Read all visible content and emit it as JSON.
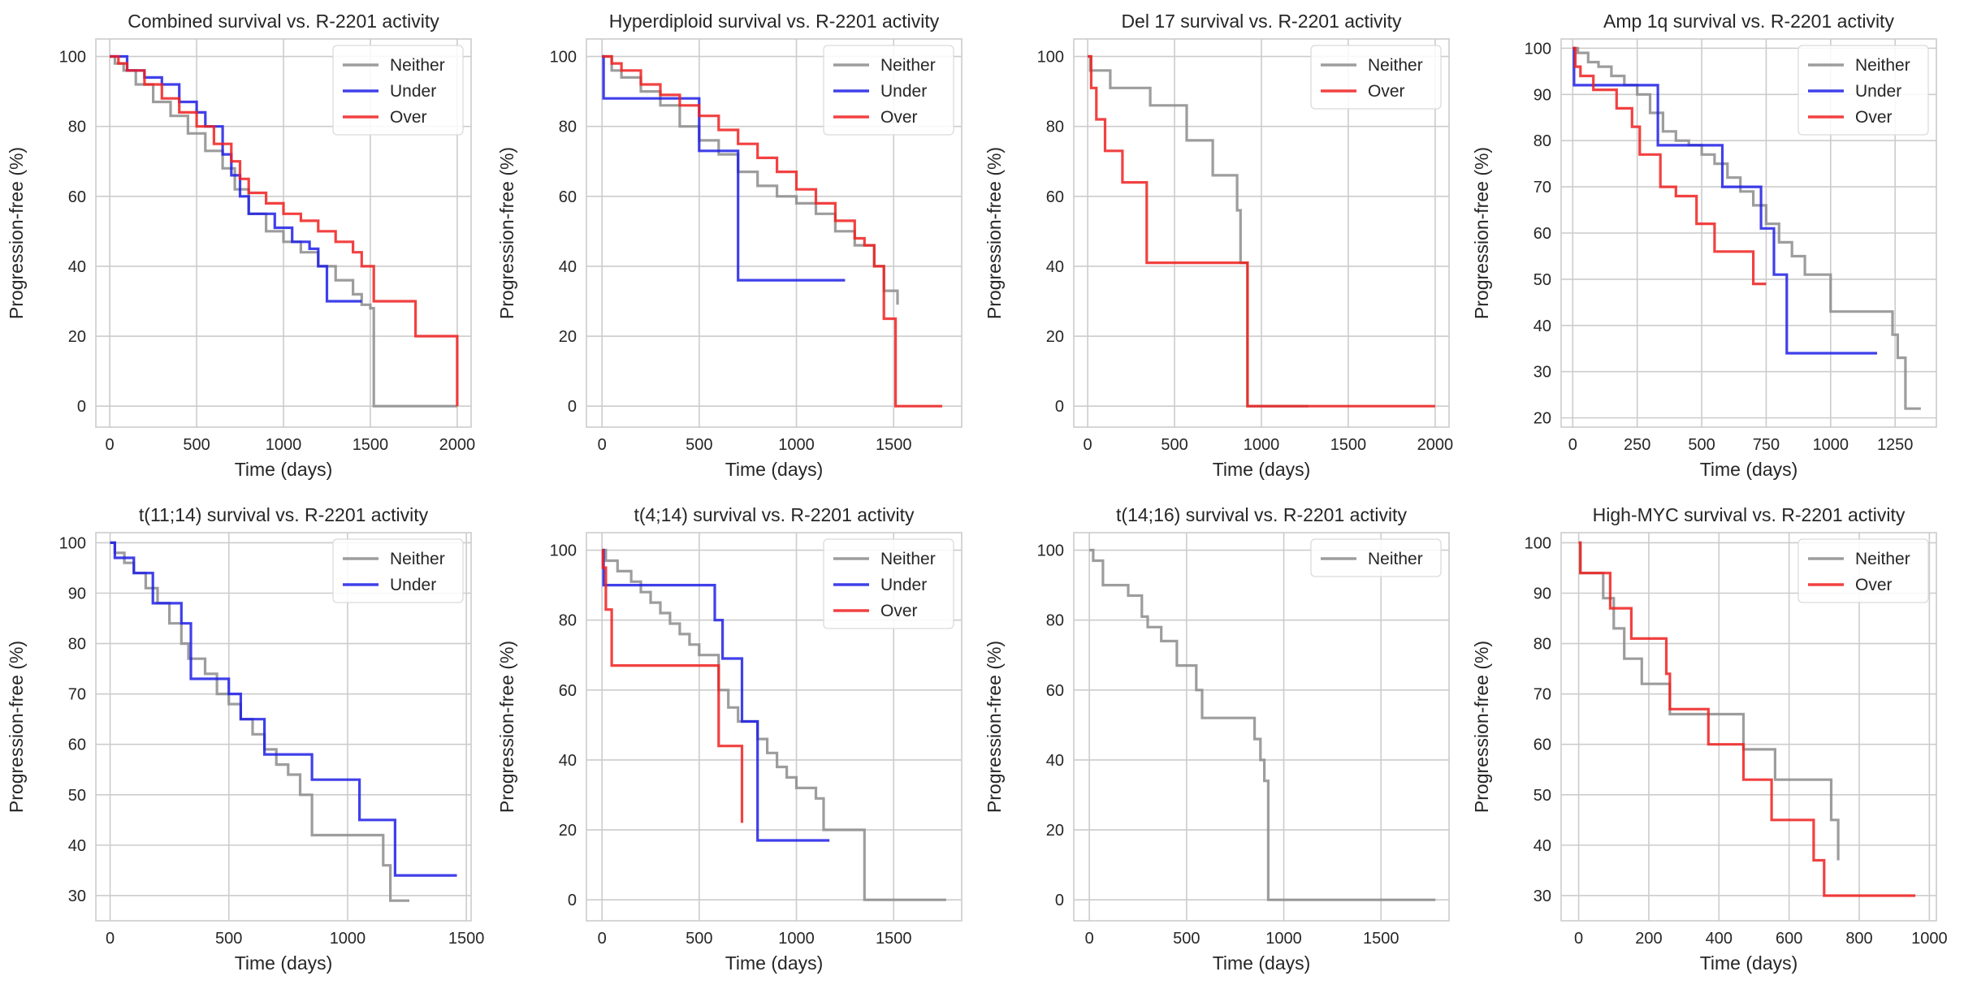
{
  "chart_data": [
    {
      "type": "line",
      "title": "Combined survival vs. R-2201 activity",
      "xlabel": "Time (days)",
      "ylabel": "Progression-free (%)",
      "xlim": [
        -80,
        2080
      ],
      "ylim": [
        -6,
        105
      ],
      "xticks": [
        0,
        500,
        1000,
        1500,
        2000
      ],
      "yticks": [
        0,
        20,
        40,
        60,
        80,
        100
      ],
      "grid": true,
      "legend": "top-right",
      "series": [
        {
          "name": "Neither",
          "color": "#8c8c8c",
          "step": true,
          "x": [
            0,
            30,
            80,
            150,
            250,
            350,
            450,
            550,
            650,
            720,
            800,
            900,
            1000,
            1100,
            1200,
            1300,
            1400,
            1450,
            1500,
            1520,
            2000
          ],
          "y": [
            100,
            98,
            96,
            92,
            87,
            83,
            78,
            73,
            68,
            62,
            55,
            50,
            47,
            44,
            40,
            36,
            32,
            29,
            28,
            0,
            0
          ]
        },
        {
          "name": "Under",
          "color": "#1f1fe6",
          "step": true,
          "x": [
            0,
            100,
            200,
            300,
            400,
            500,
            550,
            650,
            700,
            750,
            800,
            950,
            1050,
            1150,
            1200,
            1250,
            1400,
            1450
          ],
          "y": [
            100,
            96,
            94,
            92,
            87,
            84,
            80,
            72,
            66,
            60,
            55,
            51,
            47,
            45,
            40,
            30,
            30,
            30
          ]
        },
        {
          "name": "Over",
          "color": "#f02020",
          "step": true,
          "x": [
            0,
            50,
            100,
            200,
            300,
            400,
            500,
            600,
            700,
            750,
            800,
            900,
            1000,
            1100,
            1200,
            1300,
            1400,
            1450,
            1520,
            1760,
            2000
          ],
          "y": [
            100,
            98,
            96,
            92,
            88,
            84,
            80,
            75,
            70,
            65,
            61,
            58,
            55,
            53,
            50,
            47,
            44,
            40,
            30,
            20,
            0
          ]
        }
      ]
    },
    {
      "type": "line",
      "title": "Hyperdiploid survival vs. R-2201 activity",
      "xlabel": "Time (days)",
      "ylabel": "Progression-free (%)",
      "xlim": [
        -80,
        1850
      ],
      "ylim": [
        -6,
        105
      ],
      "xticks": [
        0,
        500,
        1000,
        1500
      ],
      "yticks": [
        0,
        20,
        40,
        60,
        80,
        100
      ],
      "grid": true,
      "legend": "top-right",
      "series": [
        {
          "name": "Neither",
          "color": "#8c8c8c",
          "step": true,
          "x": [
            0,
            50,
            100,
            200,
            300,
            400,
            500,
            600,
            700,
            800,
            900,
            1000,
            1100,
            1200,
            1300,
            1400,
            1450,
            1520
          ],
          "y": [
            100,
            96,
            94,
            90,
            86,
            80,
            76,
            72,
            67,
            63,
            60,
            58,
            55,
            50,
            46,
            40,
            33,
            29
          ]
        },
        {
          "name": "Under",
          "color": "#1f1fe6",
          "step": true,
          "x": [
            0,
            8,
            500,
            700,
            1250
          ],
          "y": [
            100,
            88,
            73,
            36,
            36
          ]
        },
        {
          "name": "Over",
          "color": "#f02020",
          "step": true,
          "x": [
            0,
            50,
            100,
            200,
            300,
            400,
            500,
            600,
            700,
            800,
            900,
            1000,
            1100,
            1200,
            1300,
            1350,
            1400,
            1450,
            1510,
            1750
          ],
          "y": [
            100,
            98,
            96,
            92,
            89,
            86,
            83,
            79,
            75,
            71,
            67,
            62,
            58,
            53,
            48,
            46,
            40,
            25,
            0,
            0
          ]
        }
      ]
    },
    {
      "type": "line",
      "title": "Del 17 survival vs. R-2201 activity",
      "xlabel": "Time (days)",
      "ylabel": "Progression-free (%)",
      "xlim": [
        -80,
        2080
      ],
      "ylim": [
        -6,
        105
      ],
      "xticks": [
        0,
        500,
        1000,
        1500,
        2000
      ],
      "yticks": [
        0,
        20,
        40,
        60,
        80,
        100
      ],
      "grid": true,
      "legend": "top-right",
      "series": [
        {
          "name": "Neither",
          "color": "#8c8c8c",
          "step": true,
          "x": [
            0,
            15,
            130,
            360,
            570,
            720,
            860,
            880,
            920,
            1270
          ],
          "y": [
            100,
            96,
            91,
            86,
            76,
            66,
            56,
            41,
            0,
            0
          ]
        },
        {
          "name": "Over",
          "color": "#f02020",
          "step": true,
          "x": [
            0,
            20,
            50,
            100,
            200,
            340,
            900,
            920,
            2000
          ],
          "y": [
            100,
            91,
            82,
            73,
            64,
            41,
            41,
            0,
            0
          ]
        }
      ]
    },
    {
      "type": "line",
      "title": "Amp 1q survival vs. R-2201 activity",
      "xlabel": "Time (days)",
      "ylabel": "Progression-free (%)",
      "xlim": [
        -45,
        1410
      ],
      "ylim": [
        18,
        102
      ],
      "xticks": [
        0,
        250,
        500,
        750,
        1000,
        1250
      ],
      "yticks": [
        20,
        30,
        40,
        50,
        60,
        70,
        80,
        90,
        100
      ],
      "grid": true,
      "legend": "top-right",
      "series": [
        {
          "name": "Neither",
          "color": "#8c8c8c",
          "step": true,
          "x": [
            0,
            20,
            60,
            100,
            150,
            200,
            250,
            300,
            350,
            400,
            450,
            500,
            550,
            600,
            650,
            700,
            750,
            800,
            850,
            900,
            1000,
            1240,
            1260,
            1290,
            1350
          ],
          "y": [
            100,
            99,
            97,
            96,
            94,
            92,
            90,
            86,
            82,
            80,
            79,
            77,
            75,
            72,
            69,
            66,
            62,
            58,
            55,
            51,
            43,
            38,
            33,
            22,
            22
          ]
        },
        {
          "name": "Under",
          "color": "#1f1fe6",
          "step": true,
          "x": [
            0,
            5,
            330,
            580,
            730,
            780,
            830,
            1180
          ],
          "y": [
            100,
            92,
            79,
            70,
            61,
            51,
            34,
            34
          ]
        },
        {
          "name": "Over",
          "color": "#f02020",
          "step": true,
          "x": [
            0,
            10,
            30,
            80,
            170,
            230,
            260,
            340,
            400,
            480,
            550,
            600,
            700,
            750
          ],
          "y": [
            100,
            96,
            94,
            91,
            87,
            83,
            77,
            70,
            68,
            62,
            56,
            56,
            49,
            49
          ]
        }
      ]
    },
    {
      "type": "line",
      "title": "t(11;14) survival vs. R-2201 activity",
      "xlabel": "Time (days)",
      "ylabel": "Progression-free (%)",
      "xlim": [
        -60,
        1520
      ],
      "ylim": [
        25,
        102
      ],
      "xticks": [
        0,
        500,
        1000,
        1500
      ],
      "yticks": [
        30,
        40,
        50,
        60,
        70,
        80,
        90,
        100
      ],
      "grid": true,
      "legend": "top-right",
      "series": [
        {
          "name": "Neither",
          "color": "#8c8c8c",
          "step": true,
          "x": [
            0,
            20,
            60,
            100,
            150,
            200,
            250,
            300,
            330,
            400,
            450,
            500,
            550,
            600,
            650,
            700,
            750,
            800,
            850,
            1000,
            1150,
            1180,
            1260
          ],
          "y": [
            100,
            98,
            96,
            94,
            91,
            88,
            84,
            80,
            77,
            74,
            70,
            68,
            65,
            62,
            59,
            56,
            54,
            50,
            42,
            42,
            36,
            29,
            29
          ]
        },
        {
          "name": "Under",
          "color": "#1f1fe6",
          "step": true,
          "x": [
            0,
            20,
            100,
            180,
            300,
            340,
            500,
            550,
            650,
            850,
            1050,
            1200,
            1460
          ],
          "y": [
            100,
            97,
            94,
            88,
            84,
            73,
            70,
            65,
            58,
            53,
            45,
            34,
            34
          ]
        }
      ]
    },
    {
      "type": "line",
      "title": "t(4;14) survival vs. R-2201 activity",
      "xlabel": "Time (days)",
      "ylabel": "Progression-free (%)",
      "xlim": [
        -80,
        1850
      ],
      "ylim": [
        -6,
        105
      ],
      "xticks": [
        0,
        500,
        1000,
        1500
      ],
      "yticks": [
        0,
        20,
        40,
        60,
        80,
        100
      ],
      "grid": true,
      "legend": "top-right",
      "series": [
        {
          "name": "Neither",
          "color": "#8c8c8c",
          "step": true,
          "x": [
            0,
            20,
            80,
            150,
            200,
            250,
            300,
            350,
            400,
            450,
            500,
            550,
            600,
            650,
            700,
            750,
            800,
            850,
            900,
            950,
            1000,
            1100,
            1140,
            1350,
            1770
          ],
          "y": [
            100,
            97,
            94,
            91,
            88,
            85,
            82,
            79,
            76,
            73,
            70,
            70,
            60,
            55,
            51,
            51,
            46,
            42,
            38,
            35,
            32,
            29,
            20,
            0,
            0
          ]
        },
        {
          "name": "Under",
          "color": "#1f1fe6",
          "step": true,
          "x": [
            0,
            8,
            580,
            620,
            720,
            800,
            1170
          ],
          "y": [
            100,
            90,
            80,
            69,
            51,
            17,
            17
          ]
        },
        {
          "name": "Over",
          "color": "#f02020",
          "step": true,
          "x": [
            0,
            5,
            20,
            50,
            600,
            720
          ],
          "y": [
            100,
            95,
            83,
            67,
            44,
            22
          ]
        }
      ]
    },
    {
      "type": "line",
      "title": "t(14;16) survival vs. R-2201 activity",
      "xlabel": "Time (days)",
      "ylabel": "Progression-free (%)",
      "xlim": [
        -80,
        1850
      ],
      "ylim": [
        -6,
        105
      ],
      "xticks": [
        0,
        500,
        1000,
        1500
      ],
      "yticks": [
        0,
        20,
        40,
        60,
        80,
        100
      ],
      "grid": true,
      "legend": "top-right",
      "series": [
        {
          "name": "Neither",
          "color": "#8c8c8c",
          "step": true,
          "x": [
            0,
            20,
            70,
            200,
            270,
            300,
            370,
            450,
            550,
            580,
            700,
            850,
            880,
            900,
            920,
            1780
          ],
          "y": [
            100,
            97,
            90,
            87,
            81,
            78,
            74,
            67,
            60,
            52,
            52,
            46,
            40,
            34,
            0,
            0
          ]
        }
      ]
    },
    {
      "type": "line",
      "title": "High-MYC survival vs. R-2201 activity",
      "xlabel": "Time (days)",
      "ylabel": "Progression-free (%)",
      "xlim": [
        -50,
        1020
      ],
      "ylim": [
        25,
        102
      ],
      "xticks": [
        0,
        200,
        400,
        600,
        800,
        1000
      ],
      "yticks": [
        30,
        40,
        50,
        60,
        70,
        80,
        90,
        100
      ],
      "grid": true,
      "legend": "top-right",
      "series": [
        {
          "name": "Neither",
          "color": "#8c8c8c",
          "step": true,
          "x": [
            0,
            5,
            70,
            100,
            130,
            180,
            260,
            470,
            560,
            720,
            740
          ],
          "y": [
            100,
            94,
            89,
            83,
            77,
            72,
            66,
            59,
            53,
            45,
            37
          ]
        },
        {
          "name": "Over",
          "color": "#f02020",
          "step": true,
          "x": [
            0,
            5,
            90,
            150,
            250,
            260,
            370,
            470,
            550,
            670,
            700,
            960
          ],
          "y": [
            100,
            94,
            87,
            81,
            74,
            67,
            60,
            53,
            45,
            37,
            30,
            30
          ]
        }
      ]
    }
  ]
}
